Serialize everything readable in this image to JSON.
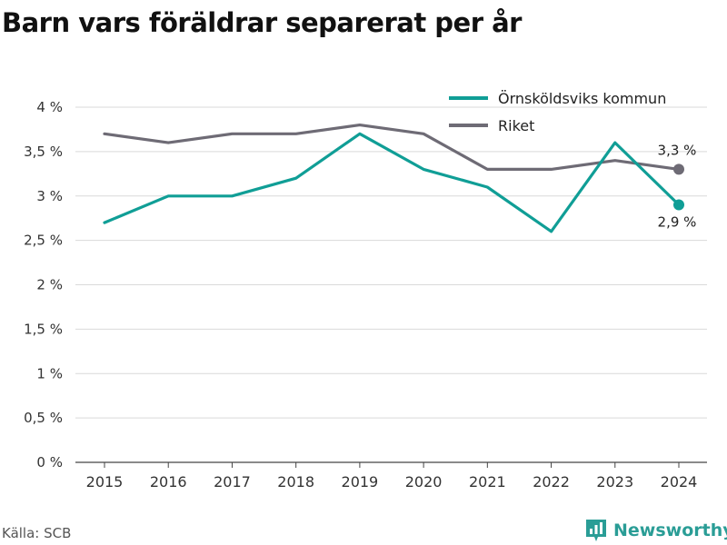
{
  "title": "Barn vars föräldrar separerat per år",
  "source": "Källa: SCB",
  "brand": {
    "name": "Newsworthy",
    "icon": "bar-chart-logo-icon",
    "color": "#2a9d96"
  },
  "chart_data": {
    "type": "line",
    "title": "Barn vars föräldrar separerat per år",
    "categories": [
      "2015",
      "2016",
      "2017",
      "2018",
      "2019",
      "2020",
      "2021",
      "2022",
      "2023",
      "2024"
    ],
    "series": [
      {
        "name": "Örnsköldsviks kommun",
        "values": [
          2.7,
          3.0,
          3.0,
          3.2,
          3.7,
          3.3,
          3.1,
          2.6,
          3.6,
          2.9
        ],
        "color": "#109e96",
        "end_label": "2,9 %"
      },
      {
        "name": "Riket",
        "values": [
          3.7,
          3.6,
          3.7,
          3.7,
          3.8,
          3.7,
          3.3,
          3.3,
          3.4,
          3.3
        ],
        "color": "#6e6b75",
        "end_label": "3,3 %"
      }
    ],
    "yticks": [
      0,
      0.5,
      1,
      1.5,
      2,
      2.5,
      3,
      3.5,
      4
    ],
    "ytick_labels": [
      "0 %",
      "0,5 %",
      "1 %",
      "1,5 %",
      "2 %",
      "2,5 %",
      "3 %",
      "3,5 %",
      "4 %"
    ],
    "ylim": [
      0,
      4
    ],
    "xlabel": "",
    "ylabel": "",
    "grid": true,
    "legend_position": "top-right"
  }
}
